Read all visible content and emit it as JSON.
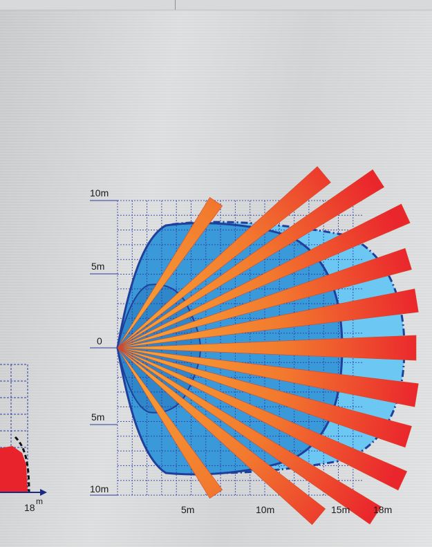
{
  "colors": {
    "grid": "#2a3aa0",
    "zone_outer": "#6cc8f3",
    "zone_main": "#3a9ad9",
    "zone_border": "#1f3f9a",
    "ray_start": "#f39a30",
    "ray_end": "#ee2f2f",
    "left_zone": "#e8232b"
  },
  "main_diagram": {
    "y_labels": {
      "top": "10m",
      "upper": "5m",
      "center": "0",
      "lower": "5m",
      "bottom": "10m"
    },
    "x_labels": {
      "x5": "5m",
      "x10": "10m",
      "x15": "15m",
      "x18": "18m"
    }
  },
  "left_fragment": {
    "x_label": "18",
    "unit": "m"
  }
}
